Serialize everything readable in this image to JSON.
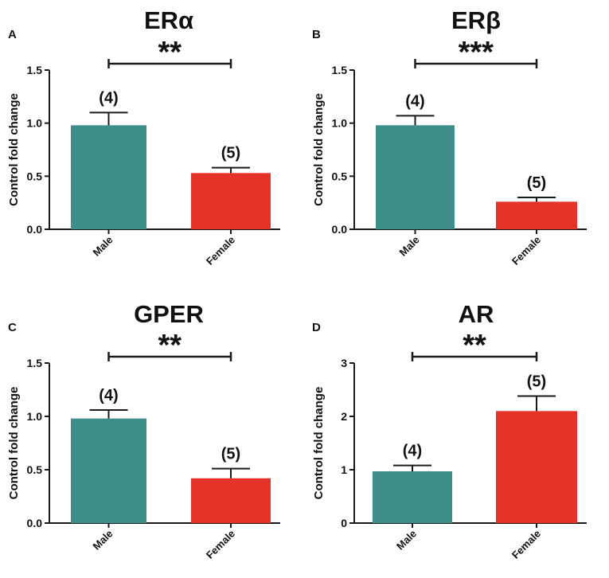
{
  "colors": {
    "male": "#3E8E8A",
    "female": "#E5332A",
    "axis": "#1a1a1a"
  },
  "ylabel": "Control fold change",
  "chart_data": [
    {
      "type": "bar",
      "panel": "A",
      "title": "ERα",
      "categories": [
        "Male",
        "Female"
      ],
      "values": [
        0.98,
        0.53
      ],
      "errors": [
        0.12,
        0.05
      ],
      "n_labels": [
        "(4)",
        "(5)"
      ],
      "significance": "**",
      "ylim": [
        0,
        1.5
      ],
      "yticks": [
        0,
        0.5,
        1.0,
        1.5
      ],
      "ytick_labels": [
        "0.0",
        "0.5",
        "1.0",
        "1.5"
      ],
      "ylabel": "Control fold change",
      "xlabel": ""
    },
    {
      "type": "bar",
      "panel": "B",
      "title": "ERβ",
      "categories": [
        "Male",
        "Female"
      ],
      "values": [
        0.98,
        0.26
      ],
      "errors": [
        0.09,
        0.04
      ],
      "n_labels": [
        "(4)",
        "(5)"
      ],
      "significance": "***",
      "ylim": [
        0,
        1.5
      ],
      "yticks": [
        0,
        0.5,
        1.0,
        1.5
      ],
      "ytick_labels": [
        "0.0",
        "0.5",
        "1.0",
        "1.5"
      ],
      "ylabel": "Control fold change",
      "xlabel": ""
    },
    {
      "type": "bar",
      "panel": "C",
      "title": "GPER",
      "categories": [
        "Male",
        "Female"
      ],
      "values": [
        0.98,
        0.42
      ],
      "errors": [
        0.08,
        0.09
      ],
      "n_labels": [
        "(4)",
        "(5)"
      ],
      "significance": "**",
      "ylim": [
        0,
        1.5
      ],
      "yticks": [
        0,
        0.5,
        1.0,
        1.5
      ],
      "ytick_labels": [
        "0.0",
        "0.5",
        "1.0",
        "1.5"
      ],
      "ylabel": "Control fold change",
      "xlabel": ""
    },
    {
      "type": "bar",
      "panel": "D",
      "title": "AR",
      "categories": [
        "Male",
        "Female"
      ],
      "values": [
        0.97,
        2.1
      ],
      "errors": [
        0.11,
        0.28
      ],
      "n_labels": [
        "(4)",
        "(5)"
      ],
      "significance": "**",
      "ylim": [
        0,
        3
      ],
      "yticks": [
        0,
        1,
        2,
        3
      ],
      "ytick_labels": [
        "0",
        "1",
        "2",
        "3"
      ],
      "ylabel": "Control fold change",
      "xlabel": ""
    }
  ]
}
